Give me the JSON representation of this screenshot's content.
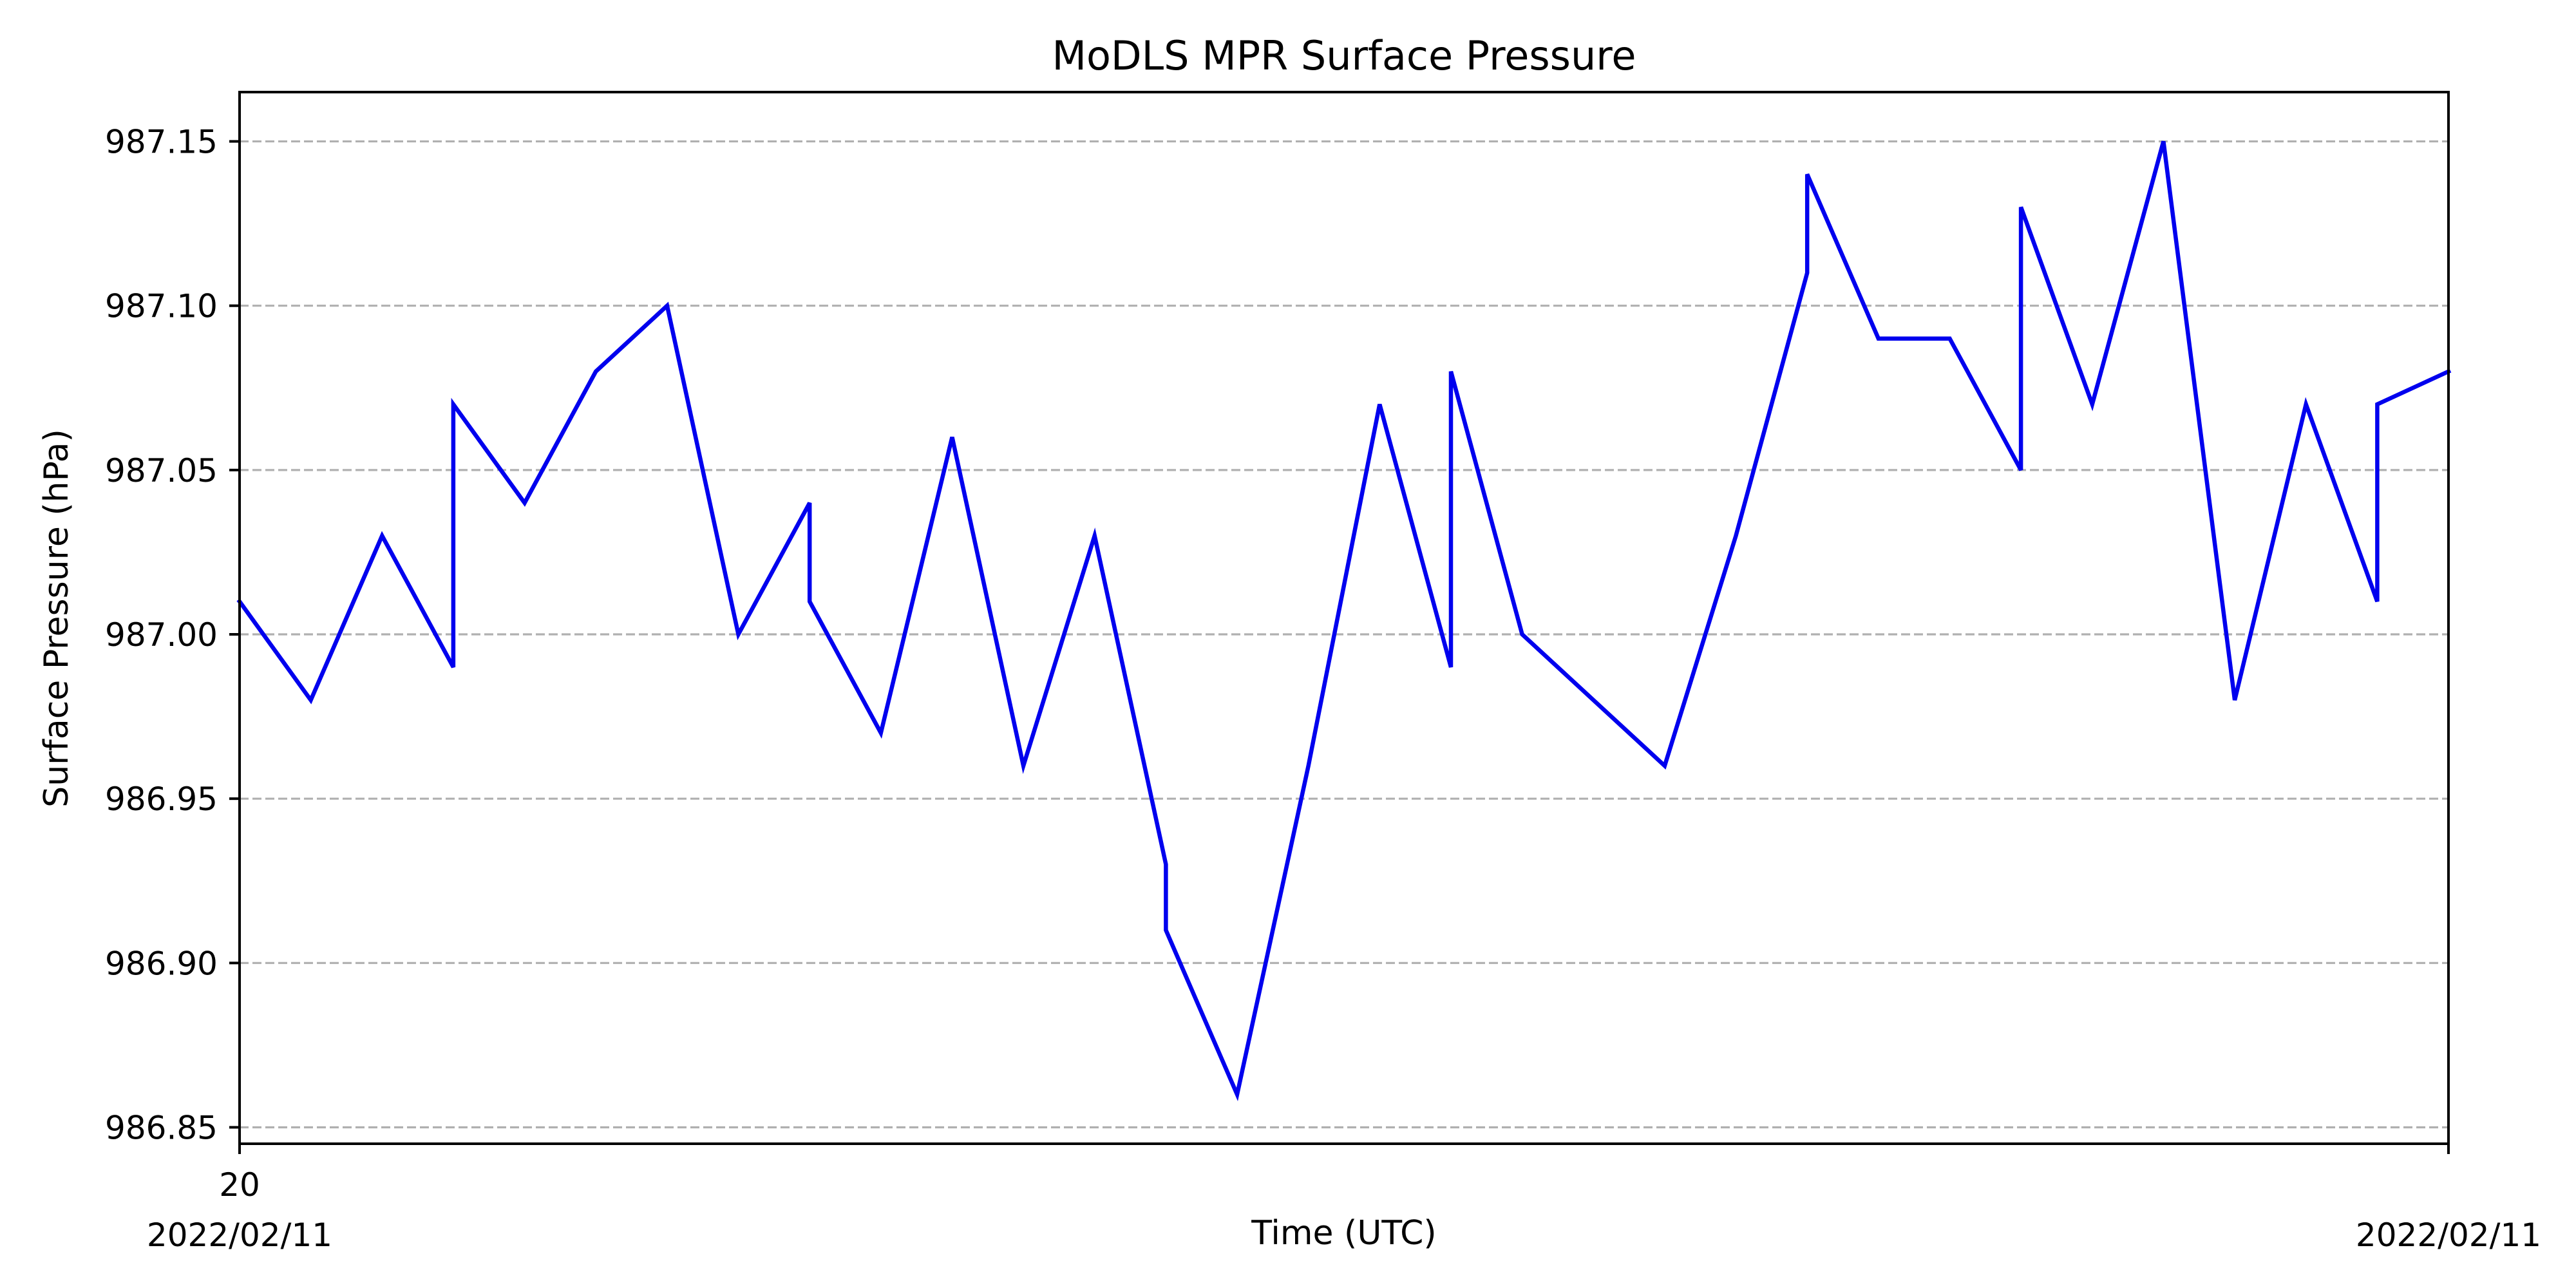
{
  "chart_data": {
    "type": "line",
    "title": "MoDLS MPR Surface Pressure",
    "xlabel": "Time (UTC)",
    "ylabel": "Surface Pressure (hPa)",
    "x_tick_labels": [
      {
        "time": "20",
        "date": "2022/02/11"
      },
      {
        "time": "",
        "date": "2022/02/11"
      }
    ],
    "ylim": [
      986.845,
      987.165
    ],
    "yticks": [
      "986.85",
      "986.90",
      "986.95",
      "987.00",
      "987.05",
      "987.10",
      "987.15"
    ],
    "grid": "horizontal dashed",
    "line_color": "#0000ee",
    "series": [
      {
        "values": [
          987.01,
          986.98,
          987.03,
          986.99,
          987.07,
          987.04,
          987.08,
          987.1,
          987.0,
          987.04,
          987.01,
          986.97,
          987.06,
          986.96,
          987.03,
          986.93,
          986.91,
          986.86,
          986.96,
          987.07,
          986.99,
          986.99,
          987.08,
          987.0,
          986.98,
          986.96,
          987.03,
          987.11,
          987.14,
          987.09,
          987.09,
          987.05,
          987.05,
          987.13,
          987.07,
          987.15,
          986.98,
          987.07,
          987.01,
          987.07,
          987.08
        ]
      }
    ]
  }
}
